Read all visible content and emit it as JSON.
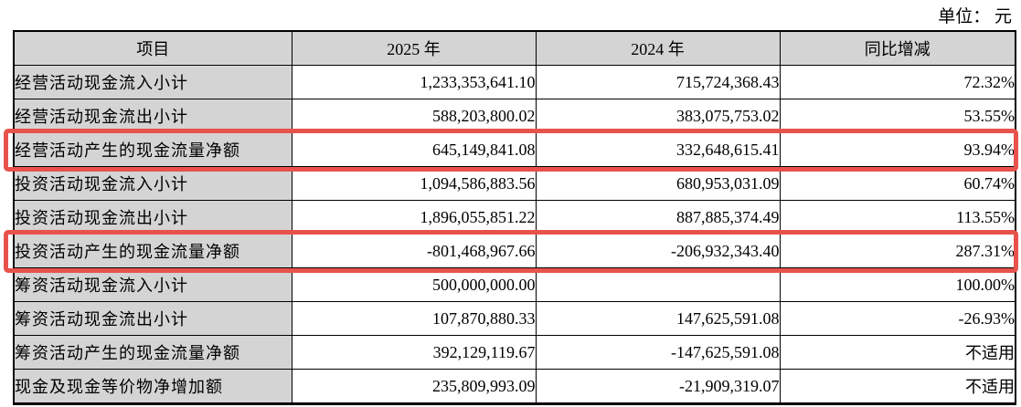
{
  "unit_label": "单位： 元",
  "table": {
    "headers": {
      "item": "项目",
      "y2025": "2025 年",
      "y2024": "2024 年",
      "change": "同比增减"
    },
    "rows": [
      {
        "item": "经营活动现金流入小计",
        "y2025": "1,233,353,641.10",
        "y2024": "715,724,368.43",
        "change": "72.32%",
        "highlighted": false
      },
      {
        "item": "经营活动现金流出小计",
        "y2025": "588,203,800.02",
        "y2024": "383,075,753.02",
        "change": "53.55%",
        "highlighted": false
      },
      {
        "item": "经营活动产生的现金流量净额",
        "y2025": "645,149,841.08",
        "y2024": "332,648,615.41",
        "change": "93.94%",
        "highlighted": true
      },
      {
        "item": "投资活动现金流入小计",
        "y2025": "1,094,586,883.56",
        "y2024": "680,953,031.09",
        "change": "60.74%",
        "highlighted": false
      },
      {
        "item": "投资活动现金流出小计",
        "y2025": "1,896,055,851.22",
        "y2024": "887,885,374.49",
        "change": "113.55%",
        "highlighted": false
      },
      {
        "item": "投资活动产生的现金流量净额",
        "y2025": "-801,468,967.66",
        "y2024": "-206,932,343.40",
        "change": "287.31%",
        "highlighted": true
      },
      {
        "item": "筹资活动现金流入小计",
        "y2025": "500,000,000.00",
        "y2024": "",
        "change": "100.00%",
        "highlighted": false
      },
      {
        "item": "筹资活动现金流出小计",
        "y2025": "107,870,880.33",
        "y2024": "147,625,591.08",
        "change": "-26.93%",
        "highlighted": false
      },
      {
        "item": "筹资活动产生的现金流量净额",
        "y2025": "392,129,119.67",
        "y2024": "-147,625,591.08",
        "change": "不适用",
        "highlighted": false
      },
      {
        "item": "现金及现金等价物净增加额",
        "y2025": "235,809,993.09",
        "y2024": "-21,909,319.07",
        "change": "不适用",
        "highlighted": false
      }
    ]
  },
  "colors": {
    "header_bg": "#d4d4d4",
    "item_column_bg": "#d4d4d4",
    "highlight_border": "#e8524d",
    "table_border": "#000000",
    "text": "#000000"
  }
}
